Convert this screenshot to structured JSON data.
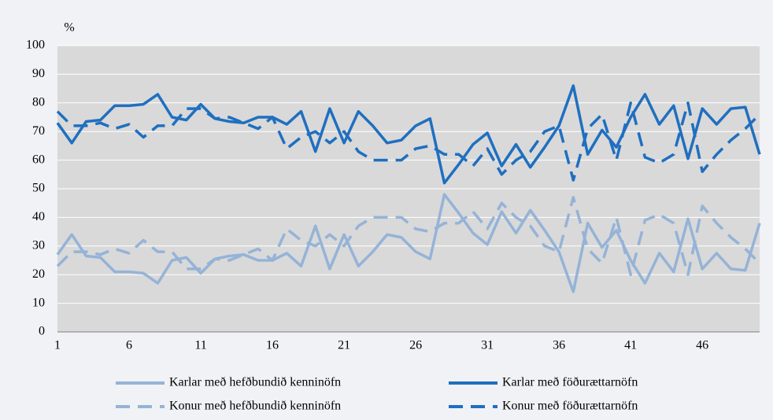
{
  "chart_data": {
    "type": "line",
    "y_axis_label": "%",
    "categories": [
      "1",
      null,
      null,
      null,
      null,
      "6",
      null,
      null,
      null,
      null,
      "11",
      null,
      null,
      null,
      null,
      "16",
      null,
      null,
      null,
      null,
      "21",
      null,
      null,
      null,
      null,
      "26",
      null,
      null,
      null,
      null,
      "31",
      null,
      null,
      null,
      null,
      "36",
      null,
      null,
      null,
      null,
      "41",
      null,
      null,
      null,
      null,
      "46",
      null,
      null,
      null,
      null
    ],
    "ylim": [
      0,
      100
    ],
    "yticks": [
      0,
      10,
      20,
      30,
      40,
      50,
      60,
      70,
      80,
      90,
      100
    ],
    "grid": true,
    "legend": "bottom",
    "series": [
      {
        "name": "Karlar með hefðbundið kenninöfn",
        "color": "#95b3d7",
        "dash": false,
        "values": [
          27,
          34,
          26.5,
          26,
          21,
          21,
          20.5,
          17,
          25,
          26,
          20.5,
          25.5,
          26.5,
          27,
          25,
          25,
          27.5,
          23,
          37,
          22,
          34,
          23,
          28,
          34,
          33,
          28,
          25.5,
          48,
          41.5,
          34.5,
          30.5,
          42,
          34.5,
          42.5,
          35.5,
          28,
          14,
          38,
          29.5,
          35.5,
          25,
          17,
          27.5,
          21,
          39.5,
          22,
          27.5,
          22,
          21.5,
          38
        ]
      },
      {
        "name": "Karlar með föðurættarnöfn",
        "color": "#1f6fc0",
        "dash": false,
        "values": [
          73,
          66,
          73.5,
          74,
          79,
          79,
          79.5,
          83,
          75,
          74,
          79.5,
          74.5,
          73.5,
          73,
          75,
          75,
          72.5,
          77,
          63,
          78,
          66,
          77,
          72,
          66,
          67,
          72,
          74.5,
          52,
          58.5,
          65.5,
          69.5,
          58,
          65.5,
          57.5,
          64.5,
          72,
          86,
          62,
          70.5,
          64.5,
          75,
          83,
          72.5,
          79,
          60.5,
          78,
          72.5,
          78,
          78.5,
          62
        ]
      },
      {
        "name": "Konur með hefðbundið kenninöfn",
        "color": "#95b3d7",
        "dash": true,
        "values": [
          23,
          28,
          28,
          27,
          29,
          27.5,
          32,
          28,
          28,
          22,
          22,
          25.5,
          25,
          27,
          29,
          25,
          36,
          32,
          30,
          34,
          30,
          37,
          40,
          40,
          40,
          36,
          35,
          38,
          38,
          42,
          36,
          45,
          40,
          37,
          30,
          28,
          47,
          29,
          24,
          40,
          20,
          39,
          41,
          38,
          20,
          44,
          38,
          33,
          29,
          24
        ]
      },
      {
        "name": "Konur með föðurættarnöfn",
        "color": "#1f6fc0",
        "dash": true,
        "values": [
          77,
          72,
          72,
          73,
          71,
          72.5,
          68,
          72,
          72,
          78,
          78,
          74.5,
          75,
          73,
          71,
          75,
          64,
          68,
          70,
          66,
          70,
          63,
          60,
          60,
          60,
          64,
          65,
          62,
          62,
          58,
          64,
          55,
          60,
          63,
          70,
          72,
          53,
          71,
          76,
          60,
          80,
          61,
          59,
          62,
          80,
          56,
          62,
          67,
          71,
          76
        ]
      }
    ]
  }
}
